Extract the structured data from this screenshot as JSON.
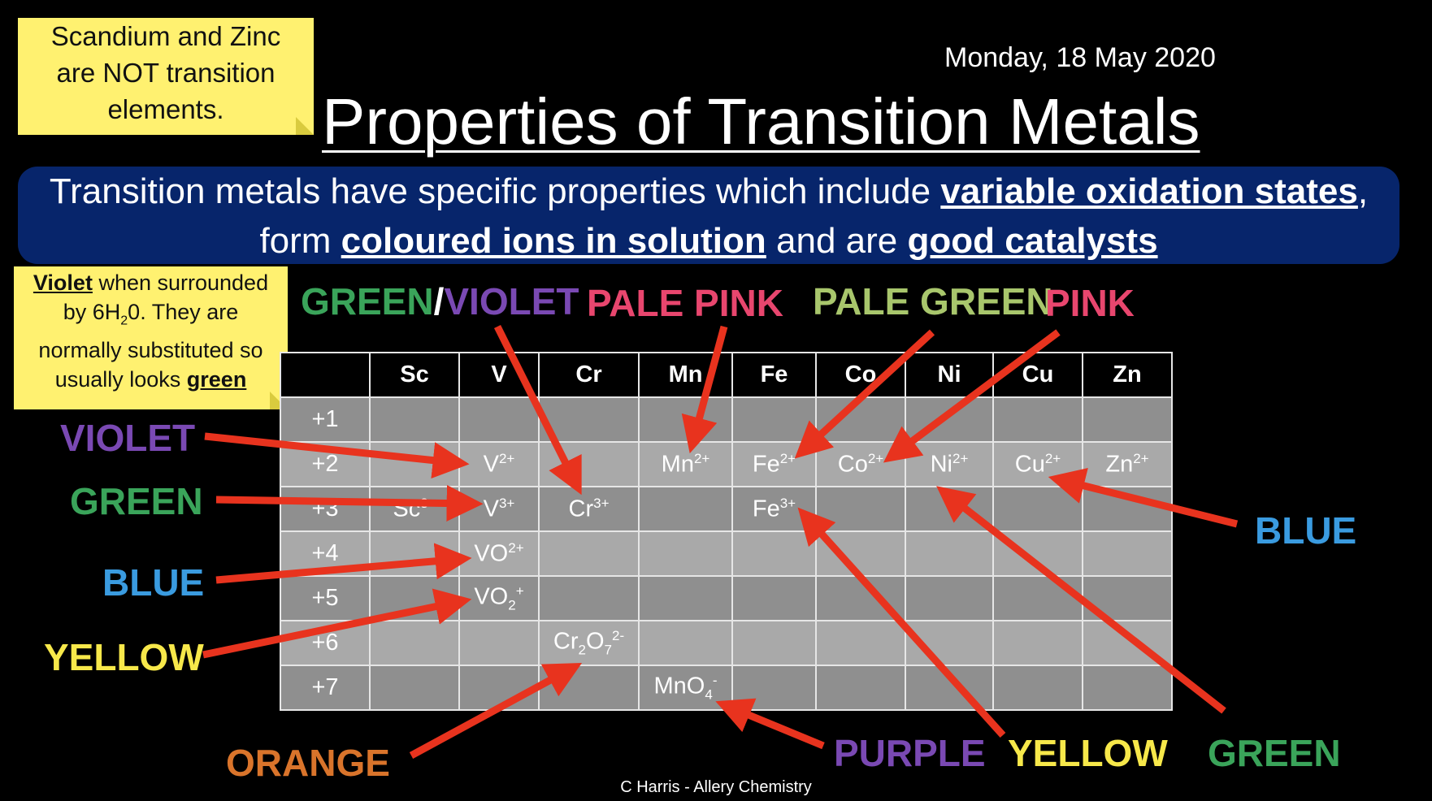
{
  "note1": {
    "lines": [
      "Scandium and Zinc",
      "are NOT transition",
      "elements."
    ]
  },
  "note2": {
    "violet": "Violet",
    "line1_rest": " when surrounded",
    "line2a": "by 6H",
    "h2o_sub": "2",
    "line2b": "0. They are",
    "line3": "normally substituted so",
    "line4": "usually looks ",
    "green": "green"
  },
  "date": "Monday, 18 May 2020",
  "title": "Properties of Transition Metals",
  "banner": {
    "t1": "Transition metals have specific properties which include ",
    "b1": "variable oxidation states",
    "t2": ", form ",
    "b2": "coloured ions in solution",
    "t3": " and are ",
    "b3": "good catalysts"
  },
  "labels": {
    "green_violet_a": "GREEN",
    "slash": "/",
    "green_violet_b": "VIOLET",
    "pale_pink": "PALE PINK",
    "pale_green": "PALE GREEN",
    "pink": "PINK",
    "violet": "VIOLET",
    "green_left": "GREEN",
    "blue_left": "BLUE",
    "yellow_left": "YELLOW",
    "orange": "ORANGE",
    "purple": "PURPLE",
    "yellow_bottom": "YELLOW",
    "green_bottom": "GREEN",
    "blue_right": "BLUE"
  },
  "colors": {
    "green": "#3aa45a",
    "violet": "#7a49b3",
    "pink": "#e8466e",
    "pale_green": "#a8c66c",
    "blue": "#3a9be0",
    "yellow": "#f7e84a",
    "orange": "#d9742b",
    "purple": "#7a49b3",
    "arrow": "#e8331e",
    "banner": "#07256b",
    "note": "#fff170"
  },
  "table": {
    "headers": [
      "",
      "Sc",
      "V",
      "Cr",
      "Mn",
      "Fe",
      "Co",
      "Ni",
      "Cu",
      "Zn"
    ],
    "rows": [
      {
        "ox": "+1",
        "cells": [
          "",
          "",
          "",
          "",
          "",
          "",
          "",
          "",
          ""
        ]
      },
      {
        "ox": "+2",
        "cells": [
          "",
          "V|2+|",
          "",
          "Mn|2+|",
          "Fe|2+|",
          "Co|2+|",
          "Ni|2+|",
          "Cu|2+|",
          "Zn|2+|"
        ]
      },
      {
        "ox": "+3",
        "cells": [
          "Sc|3+|",
          "V|3+|",
          "Cr|3+|",
          "",
          "Fe|3+|",
          "",
          "",
          "",
          ""
        ]
      },
      {
        "ox": "+4",
        "cells": [
          "",
          "VO|2+|",
          "",
          "",
          "",
          "",
          "",
          "",
          ""
        ]
      },
      {
        "ox": "+5",
        "cells": [
          "",
          "VO_2_|+|",
          "",
          "",
          "",
          "",
          "",
          "",
          ""
        ]
      },
      {
        "ox": "+6",
        "cells": [
          "",
          "",
          "Cr_2_O_7_|2-|",
          "",
          "",
          "",
          "",
          "",
          ""
        ]
      },
      {
        "ox": "+7",
        "cells": [
          "",
          "",
          "",
          "MnO_4_|-|",
          "",
          "",
          "",
          "",
          ""
        ]
      }
    ]
  },
  "credit": "C Harris - Allery Chemistry"
}
